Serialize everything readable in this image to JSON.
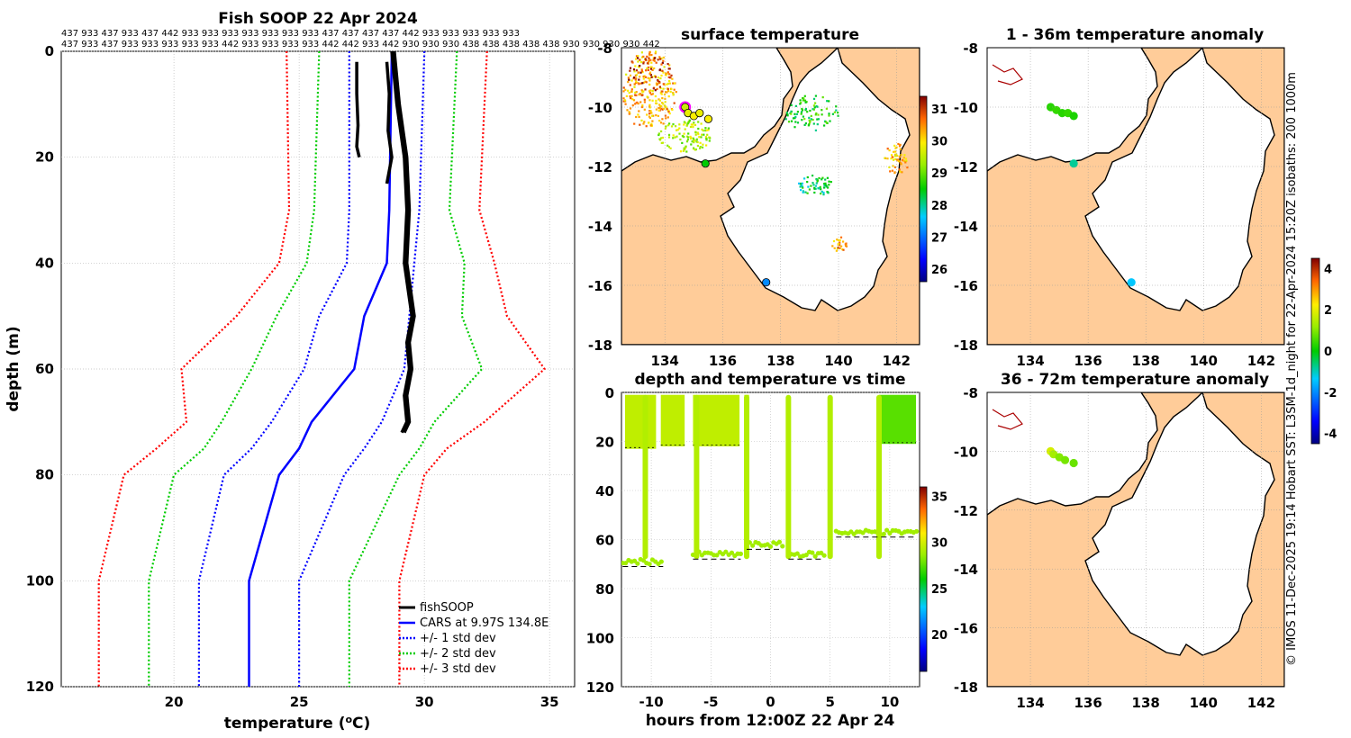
{
  "figure": {
    "credit": "© IMOS 11-Dec-2025 19:14 Hobart SST: L3SM-1d_night for 22-Apr-2024 15:20Z isobaths: 200  1000m",
    "id_rows": [
      "437 933 437 933 437 442 933 933 933 933 933 933 933 437 437 437 437 442 933 933 933 933 933",
      "437 933 437 933 933 933 933 933 442 933 933 933 933 442 442 933 442 930 930 930 438 438 438 438 438 930 930 930 930 442"
    ]
  },
  "chart_data": [
    {
      "id": "profile",
      "type": "line",
      "title": "Fish SOOP 22 Apr 2024",
      "xlabel": "temperature (",
      "xlabel_sup": "o",
      "xlabel_end": "C)",
      "ylabel": "depth (m)",
      "xlim": [
        15.5,
        36
      ],
      "ylim": [
        120,
        0
      ],
      "xticks": [
        "20",
        "25",
        "30",
        "35"
      ],
      "yticks": [
        "0",
        "20",
        "40",
        "60",
        "80",
        "100",
        "120"
      ],
      "depths": [
        0,
        30,
        40,
        50,
        60,
        70,
        75,
        80,
        100,
        120
      ],
      "cars_mean": [
        28.7,
        28.6,
        28.5,
        27.6,
        27.2,
        25.5,
        25.0,
        24.2,
        23.0,
        23.0
      ],
      "std_dev_1": {
        "minus": [
          27.0,
          27.0,
          26.9,
          25.8,
          25.2,
          23.9,
          23.1,
          22.0,
          21.0,
          21.0
        ],
        "plus": [
          30.0,
          29.8,
          29.6,
          29.4,
          29.2,
          28.3,
          27.6,
          26.8,
          25.0,
          25.0
        ]
      },
      "std_dev_2": {
        "minus": [
          25.8,
          25.6,
          25.3,
          24.1,
          23.1,
          21.9,
          21.2,
          20.0,
          19.0,
          19.0
        ],
        "plus": [
          31.3,
          31.0,
          31.6,
          31.5,
          32.3,
          30.4,
          29.8,
          29.0,
          27.0,
          27.0
        ]
      },
      "std_dev_3": {
        "minus": [
          24.5,
          24.6,
          24.2,
          22.5,
          20.3,
          20.5,
          19.3,
          18.0,
          17.0,
          17.0
        ],
        "plus": [
          32.5,
          32.2,
          32.8,
          33.3,
          34.8,
          32.4,
          30.9,
          30.0,
          29.0,
          29.0
        ]
      },
      "fishsoop_traces": [
        {
          "temps": [
            27.3,
            27.3,
            27.35,
            27.3,
            27.4
          ],
          "depths": [
            2,
            8,
            14,
            18,
            20
          ]
        },
        {
          "temps": [
            28.5,
            28.6,
            28.55,
            28.7,
            28.5
          ],
          "depths": [
            2,
            8,
            15,
            20,
            25
          ]
        },
        {
          "temps": [
            28.7,
            28.9,
            29.2,
            29.3,
            29.2,
            29.5,
            29.3,
            29.4,
            29.2,
            29.3,
            29.1
          ],
          "depths": [
            0,
            10,
            20,
            30,
            40,
            50,
            55,
            60,
            65,
            70,
            72
          ]
        }
      ],
      "legend": [
        "fishSOOP",
        "CARS at 9.97S 134.8E",
        "+/- 1 std dev",
        "+/- 2 std dev",
        "+/- 3 std dev"
      ],
      "colors": {
        "fishsoop": "#000000",
        "cars": "#0000ff",
        "sd1": "#0000ff",
        "sd2": "#00cc00",
        "sd3": "#ff0000"
      }
    },
    {
      "id": "sst_map",
      "type": "heatmap",
      "title": "surface temperature",
      "xlim": [
        132.5,
        142.8
      ],
      "ylim": [
        -18,
        -8
      ],
      "xticks": [
        "134",
        "136",
        "138",
        "140",
        "142"
      ],
      "yticks": [
        "-8",
        "-10",
        "-12",
        "-14",
        "-16",
        "-18"
      ],
      "colorbar_ticks": [
        "31",
        "30",
        "29",
        "28",
        "27",
        "26"
      ],
      "colorbar_range": [
        25.6,
        31.4
      ],
      "stations": [
        {
          "lon": 134.7,
          "lat": -10.0,
          "t": 29.6,
          "highlight": true
        },
        {
          "lon": 134.8,
          "lat": -10.2,
          "t": 29.8
        },
        {
          "lon": 135.0,
          "lat": -10.3,
          "t": 29.9
        },
        {
          "lon": 135.2,
          "lat": -10.2,
          "t": 29.8
        },
        {
          "lon": 135.5,
          "lat": -10.4,
          "t": 29.9
        },
        {
          "lon": 135.4,
          "lat": -11.9,
          "t": 28.5
        },
        {
          "lon": 137.5,
          "lat": -15.9,
          "t": 27.2
        }
      ]
    },
    {
      "id": "depth_time",
      "type": "scatter",
      "title": "depth and temperature vs time",
      "xlabel": "hours from 12:00Z 22 Apr 24",
      "xlim": [
        -12.5,
        12.5
      ],
      "ylim": [
        120,
        0
      ],
      "xticks": [
        "-10",
        "-5",
        "0",
        "5",
        "10"
      ],
      "yticks": [
        "0",
        "20",
        "40",
        "60",
        "80",
        "100",
        "120"
      ],
      "colorbar_ticks": [
        "35",
        "30",
        "25",
        "20"
      ],
      "colorbar_range": [
        16,
        36
      ],
      "bottom_depth_segments": [
        {
          "x": [
            -12.4,
            -9.0
          ],
          "depth": 71
        },
        {
          "x": [
            -6.5,
            -2.5
          ],
          "depth": 68
        },
        {
          "x": [
            -2.0,
            1.0
          ],
          "depth": 64
        },
        {
          "x": [
            1.5,
            4.5
          ],
          "depth": 68
        },
        {
          "x": [
            5.5,
            12.3
          ],
          "depth": 59
        }
      ],
      "descents": [
        -10.5,
        -6.2,
        -2.0,
        1.5,
        5.0,
        9.1
      ],
      "near_surface_band": {
        "depth_top": 1,
        "depth_bottom": 22,
        "temp": 29.5
      }
    },
    {
      "id": "anomaly_1_36",
      "type": "scatter",
      "title": "1 - 36m temperature anomaly",
      "xlim": [
        132.5,
        142.8
      ],
      "ylim": [
        -18,
        -8
      ],
      "xticks": [
        "134",
        "136",
        "138",
        "140",
        "142"
      ],
      "yticks": [
        "-8",
        "-10",
        "-12",
        "-14",
        "-16",
        "-18"
      ],
      "points": [
        {
          "lon": 134.7,
          "lat": -10.0,
          "a": 0.3
        },
        {
          "lon": 134.9,
          "lat": -10.1,
          "a": 0.4
        },
        {
          "lon": 135.1,
          "lat": -10.2,
          "a": 0.3
        },
        {
          "lon": 135.3,
          "lat": -10.2,
          "a": 0.4
        },
        {
          "lon": 135.5,
          "lat": -10.3,
          "a": 0.2
        },
        {
          "lon": 135.5,
          "lat": -11.9,
          "a": -0.8
        },
        {
          "lon": 137.5,
          "lat": -15.9,
          "a": -1.4
        }
      ]
    },
    {
      "id": "anomaly_36_72",
      "type": "scatter",
      "title": "36 - 72m temperature anomaly",
      "xlim": [
        132.5,
        142.8
      ],
      "ylim": [
        -18,
        -8
      ],
      "xticks": [
        "134",
        "136",
        "138",
        "140",
        "142"
      ],
      "yticks": [
        "-8",
        "-10",
        "-12",
        "-14",
        "-16",
        "-18"
      ],
      "points": [
        {
          "lon": 134.7,
          "lat": -10.0,
          "a": 1.8
        },
        {
          "lon": 134.8,
          "lat": -10.1,
          "a": 1.3
        },
        {
          "lon": 135.0,
          "lat": -10.2,
          "a": 1.0
        },
        {
          "lon": 135.2,
          "lat": -10.3,
          "a": 0.9
        },
        {
          "lon": 135.5,
          "lat": -10.4,
          "a": 0.8
        }
      ]
    },
    {
      "id": "anomaly_colorbar",
      "type": "heatmap",
      "colorbar_ticks": [
        "4",
        "2",
        "0",
        "-2",
        "-4"
      ],
      "colorbar_range": [
        -4.5,
        4.5
      ]
    }
  ]
}
